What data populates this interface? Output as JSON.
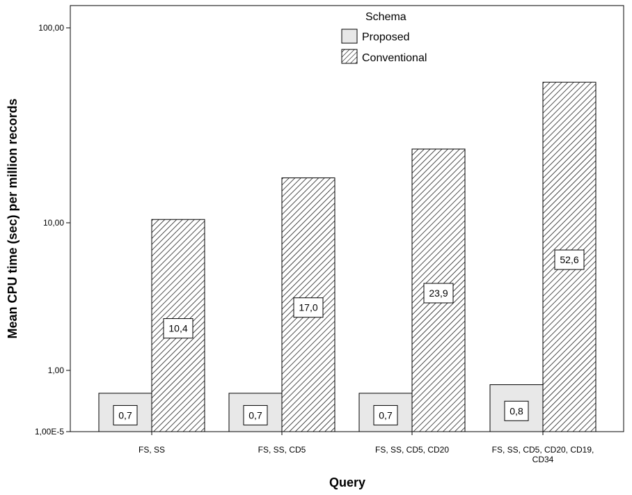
{
  "chart_data": {
    "type": "bar",
    "xlabel": "Query",
    "ylabel": "Mean CPU time (sec) per million records",
    "yscale": "log",
    "yticks": [
      {
        "value": 1e-05,
        "label": "1,00E-5"
      },
      {
        "value": 1,
        "label": "1,00"
      },
      {
        "value": 10,
        "label": "10,00"
      },
      {
        "value": 100,
        "label": "100,00"
      }
    ],
    "legend": {
      "title": "Schema",
      "position": "top-center",
      "entries": [
        "Proposed",
        "Conventional"
      ]
    },
    "categories": [
      [
        "FS, SS"
      ],
      [
        "FS, SS, CD5"
      ],
      [
        "FS, SS, CD5, CD20"
      ],
      [
        "FS, SS, CD5, CD20, CD19,",
        "CD34"
      ]
    ],
    "series": [
      {
        "name": "Proposed",
        "values": [
          0.7,
          0.7,
          0.7,
          0.8
        ],
        "labels": [
          "0,7",
          "0,7",
          "0,7",
          "0,8"
        ],
        "fill": "#e8e8e8"
      },
      {
        "name": "Conventional",
        "values": [
          10.4,
          17.0,
          23.9,
          52.6
        ],
        "labels": [
          "10,4",
          "17,0",
          "23,9",
          "52,6"
        ],
        "fill": "hatch"
      }
    ]
  }
}
